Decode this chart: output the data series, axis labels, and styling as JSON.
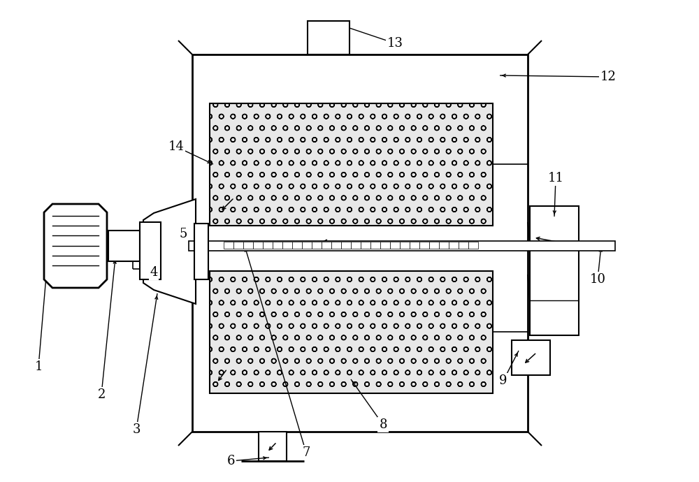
{
  "bg_color": "#ffffff",
  "line_color": "#000000",
  "figsize": [
    10.0,
    6.9
  ],
  "dpi": 100,
  "lw_main": 1.8,
  "lw_thin": 1.0,
  "label_fontsize": 13
}
